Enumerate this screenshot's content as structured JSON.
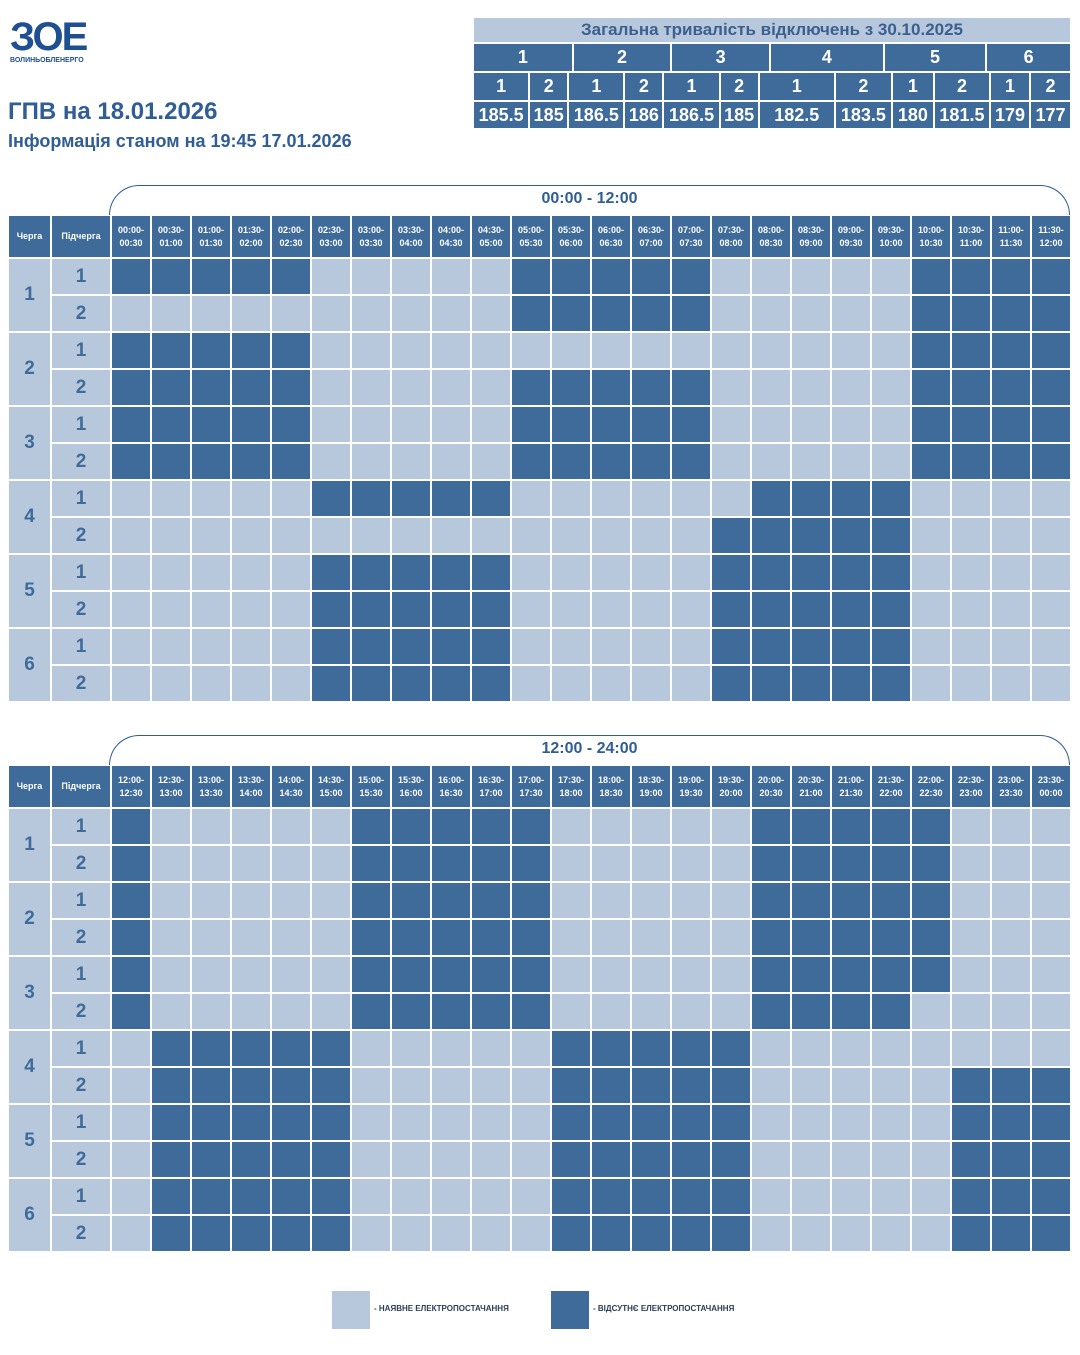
{
  "logo": {
    "mark": "ЗОЕ",
    "sub": "ВОЛИНЬОБЛЕНЕРГО"
  },
  "title": "ГПВ на 18.01.2026",
  "subtitle": "Інформація станом на 19:45 17.01.2026",
  "summary": {
    "title": "Загальна тривалість відключень з 30.10.2025",
    "queues": [
      "1",
      "2",
      "3",
      "4",
      "5",
      "6"
    ],
    "subqueues": [
      "1",
      "2",
      "1",
      "2",
      "1",
      "2",
      "1",
      "2",
      "1",
      "2",
      "1",
      "2"
    ],
    "values": [
      "185.5",
      "185",
      "186.5",
      "186",
      "186.5",
      "185",
      "182.5",
      "183.5",
      "180",
      "181.5",
      "179",
      "177"
    ]
  },
  "colors": {
    "on": "#b8c8dc",
    "off": "#3e6b9a"
  },
  "tables": [
    {
      "label": "00:00 - 12:00",
      "queue_header": "Черга",
      "sub_header": "Підчерга",
      "slots": [
        "00:00-\n00:30",
        "00:30-\n01:00",
        "01:00-\n01:30",
        "01:30-\n02:00",
        "02:00-\n02:30",
        "02:30-\n03:00",
        "03:00-\n03:30",
        "03:30-\n04:00",
        "04:00-\n04:30",
        "04:30-\n05:00",
        "05:00-\n05:30",
        "05:30-\n06:00",
        "06:00-\n06:30",
        "06:30-\n07:00",
        "07:00-\n07:30",
        "07:30-\n08:00",
        "08:00-\n08:30",
        "08:30-\n09:00",
        "09:00-\n09:30",
        "09:30-\n10:00",
        "10:00-\n10:30",
        "10:30-\n11:00",
        "11:00-\n11:30",
        "11:30-\n12:00"
      ],
      "rows": [
        {
          "queue": "1",
          "sub": "1",
          "cells": "111110000011111000001111"
        },
        {
          "queue": "1",
          "sub": "2",
          "cells": "000000000011111000001111"
        },
        {
          "queue": "2",
          "sub": "1",
          "cells": "111110000000000000001111"
        },
        {
          "queue": "2",
          "sub": "2",
          "cells": "111110000011111000001111"
        },
        {
          "queue": "3",
          "sub": "1",
          "cells": "111110000011111000001111"
        },
        {
          "queue": "3",
          "sub": "2",
          "cells": "111110000011111000001111"
        },
        {
          "queue": "4",
          "sub": "1",
          "cells": "000001111100000011110000"
        },
        {
          "queue": "4",
          "sub": "2",
          "cells": "000000000000000111110000"
        },
        {
          "queue": "5",
          "sub": "1",
          "cells": "000001111100000111110000"
        },
        {
          "queue": "5",
          "sub": "2",
          "cells": "000001111100000111110000"
        },
        {
          "queue": "6",
          "sub": "1",
          "cells": "000001111100000111110000"
        },
        {
          "queue": "6",
          "sub": "2",
          "cells": "000001111100000111110000"
        }
      ]
    },
    {
      "label": "12:00 - 24:00",
      "queue_header": "Черга",
      "sub_header": "Підчерга",
      "slots": [
        "12:00-\n12:30",
        "12:30-\n13:00",
        "13:00-\n13:30",
        "13:30-\n14:00",
        "14:00-\n14:30",
        "14:30-\n15:00",
        "15:00-\n15:30",
        "15:30-\n16:00",
        "16:00-\n16:30",
        "16:30-\n17:00",
        "17:00-\n17:30",
        "17:30-\n18:00",
        "18:00-\n18:30",
        "18:30-\n19:00",
        "19:00-\n19:30",
        "19:30-\n20:00",
        "20:00-\n20:30",
        "20:30-\n21:00",
        "21:00-\n21:30",
        "21:30-\n22:00",
        "22:00-\n22:30",
        "22:30-\n23:00",
        "23:00-\n23:30",
        "23:30-\n00:00"
      ],
      "rows": [
        {
          "queue": "1",
          "sub": "1",
          "cells": "100000111110000011111000"
        },
        {
          "queue": "1",
          "sub": "2",
          "cells": "100000111110000011111000"
        },
        {
          "queue": "2",
          "sub": "1",
          "cells": "100000111110000011111000"
        },
        {
          "queue": "2",
          "sub": "2",
          "cells": "100000111110000011111000"
        },
        {
          "queue": "3",
          "sub": "1",
          "cells": "100000111110000011111000"
        },
        {
          "queue": "3",
          "sub": "2",
          "cells": "100000111110000011110000"
        },
        {
          "queue": "4",
          "sub": "1",
          "cells": "011111000001111100000000"
        },
        {
          "queue": "4",
          "sub": "2",
          "cells": "011111000001111100000111"
        },
        {
          "queue": "5",
          "sub": "1",
          "cells": "011111000001111100000111"
        },
        {
          "queue": "5",
          "sub": "2",
          "cells": "011111000001111100000111"
        },
        {
          "queue": "6",
          "sub": "1",
          "cells": "011111000001111100000111"
        },
        {
          "queue": "6",
          "sub": "2",
          "cells": "011111000001111100000111"
        }
      ]
    }
  ],
  "legend": {
    "on_label": "- НАЯВНЕ ЕЛЕКТРОПОСТАЧАННЯ",
    "off_label": "- ВІДСУТНЄ ЕЛЕКТРОПОСТАЧАННЯ"
  }
}
